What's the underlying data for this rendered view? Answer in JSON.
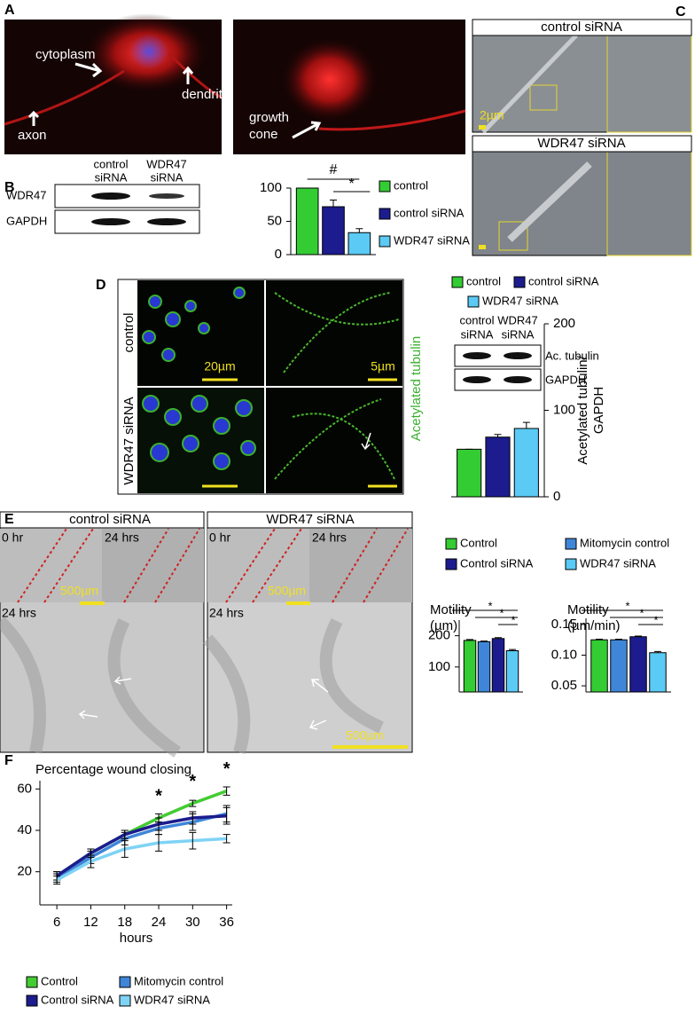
{
  "panel_labels": [
    "A",
    "B",
    "C",
    "D",
    "E",
    "F"
  ],
  "panel_a": {
    "annotations": [
      "cytoplasm",
      "dendrite",
      "axon"
    ],
    "growth_cone": [
      "growth",
      "cone"
    ]
  },
  "panel_b": {
    "blot_columns": [
      [
        "control",
        "siRNA"
      ],
      [
        "WDR47",
        "siRNA"
      ]
    ],
    "blot_rows": [
      "WDR47",
      "GAPDH"
    ]
  },
  "panel_c": {
    "headers": [
      "control siRNA",
      "WDR47 siRNA"
    ],
    "scale_bar": "2µm"
  },
  "panel_d": {
    "row_labels": [
      "control",
      "WDR47 siRNA"
    ],
    "scale_bars": [
      "20µm",
      "5µm"
    ],
    "stain": "Acetylated tubulin",
    "blot_columns": [
      [
        "control",
        "siRNA"
      ],
      [
        "WDR47",
        "siRNA"
      ]
    ],
    "blot_rows": [
      "Ac. tubulin",
      "GAPDH"
    ]
  },
  "panel_e": {
    "headers": [
      "control siRNA",
      "WDR47 siRNA"
    ],
    "time_labels": [
      "0 hr",
      "24 hrs"
    ],
    "scale_bar": "500µm"
  },
  "chart_data": [
    {
      "type": "bar",
      "series": [
        {
          "name": "control",
          "color": "#33cc33",
          "values": [
            100
          ],
          "errors": [
            0
          ]
        },
        {
          "name": "control siRNA",
          "color": "#1c1c8e",
          "values": [
            72
          ],
          "errors": [
            10
          ]
        },
        {
          "name": "WDR47 siRNA",
          "color": "#5bcaf5",
          "values": [
            33
          ],
          "errors": [
            6
          ]
        }
      ],
      "ylim": [
        0,
        100
      ],
      "yticks": [
        0,
        50,
        100
      ],
      "annotations": [
        "#",
        "*"
      ]
    },
    {
      "type": "bar",
      "series": [
        {
          "name": "control",
          "color": "#33cc33",
          "values": [
            55
          ],
          "errors": [
            0
          ]
        },
        {
          "name": "control siRNA",
          "color": "#1c1c8e",
          "values": [
            69
          ],
          "errors": [
            3
          ]
        },
        {
          "name": "WDR47 siRNA",
          "color": "#5bcaf5",
          "values": [
            79
          ],
          "errors": [
            7
          ]
        }
      ],
      "ylim": [
        0,
        200
      ],
      "yticks": [
        0,
        100,
        200
      ],
      "ylabel": [
        "Acetylated tubulin/",
        "GAPDH"
      ]
    },
    {
      "type": "bar",
      "title": [
        "Motility",
        "(µm)"
      ],
      "series": [
        {
          "name": "Control",
          "color": "#33cc33",
          "values": [
            185
          ],
          "errors": [
            3
          ]
        },
        {
          "name": "Mitomycin control",
          "color": "#3f86d8",
          "values": [
            181
          ],
          "errors": [
            2
          ]
        },
        {
          "name": "Control siRNA",
          "color": "#1c1c8e",
          "values": [
            191
          ],
          "errors": [
            3
          ]
        },
        {
          "name": "WDR47 siRNA",
          "color": "#5bcaf5",
          "values": [
            152
          ],
          "errors": [
            4
          ]
        }
      ],
      "ylim": [
        20,
        250
      ],
      "yticks": [
        100,
        200
      ],
      "annotations": [
        "*",
        "*",
        "*"
      ]
    },
    {
      "type": "bar",
      "title": [
        "Motility",
        "(µm/min)"
      ],
      "series": [
        {
          "color": "#33cc33",
          "values": [
            0.125
          ],
          "errors": [
            0.001
          ]
        },
        {
          "color": "#3f86d8",
          "values": [
            0.125
          ],
          "errors": [
            0.001
          ]
        },
        {
          "color": "#1c1c8e",
          "values": [
            0.13
          ],
          "errors": [
            0.001
          ]
        },
        {
          "color": "#5bcaf5",
          "values": [
            0.104
          ],
          "errors": [
            0.002
          ]
        }
      ],
      "ylim": [
        0.04,
        0.16
      ],
      "yticks": [
        0.05,
        {
          "value": 0.1,
          "label": "0.10"
        },
        0.15
      ],
      "annotations": [
        "*",
        "*",
        "*"
      ]
    },
    {
      "type": "line",
      "title": "Percentage wound closing",
      "xlabel": "hours",
      "x": [
        6,
        12,
        18,
        24,
        30,
        36
      ],
      "xlim": [
        3,
        37
      ],
      "xticks": [
        6,
        12,
        18,
        24,
        30,
        36
      ],
      "ylim": [
        4,
        64
      ],
      "yticks": [
        20,
        40,
        60
      ],
      "series": [
        {
          "name": "Control",
          "color": "#44cc33",
          "values": [
            18,
            29,
            38,
            46,
            53,
            59
          ],
          "errors": [
            2,
            2,
            2,
            2,
            1.5,
            2
          ]
        },
        {
          "name": "Mitomycin control",
          "color": "#3f86d8",
          "values": [
            17,
            27,
            36,
            41,
            44,
            48
          ],
          "errors": [
            2,
            3,
            3,
            3,
            4,
            4
          ]
        },
        {
          "name": "Control siRNA",
          "color": "#1c1c8e",
          "values": [
            18,
            29,
            38,
            43,
            46,
            47
          ],
          "errors": [
            2,
            2,
            2,
            3,
            3,
            4
          ]
        },
        {
          "name": "WDR47 siRNA",
          "color": "#7fd3f5",
          "values": [
            16,
            25,
            31,
            34,
            35,
            36
          ],
          "errors": [
            2,
            3,
            4,
            4,
            4,
            2
          ]
        }
      ],
      "annotations": [
        "*",
        "*",
        "*"
      ]
    }
  ]
}
